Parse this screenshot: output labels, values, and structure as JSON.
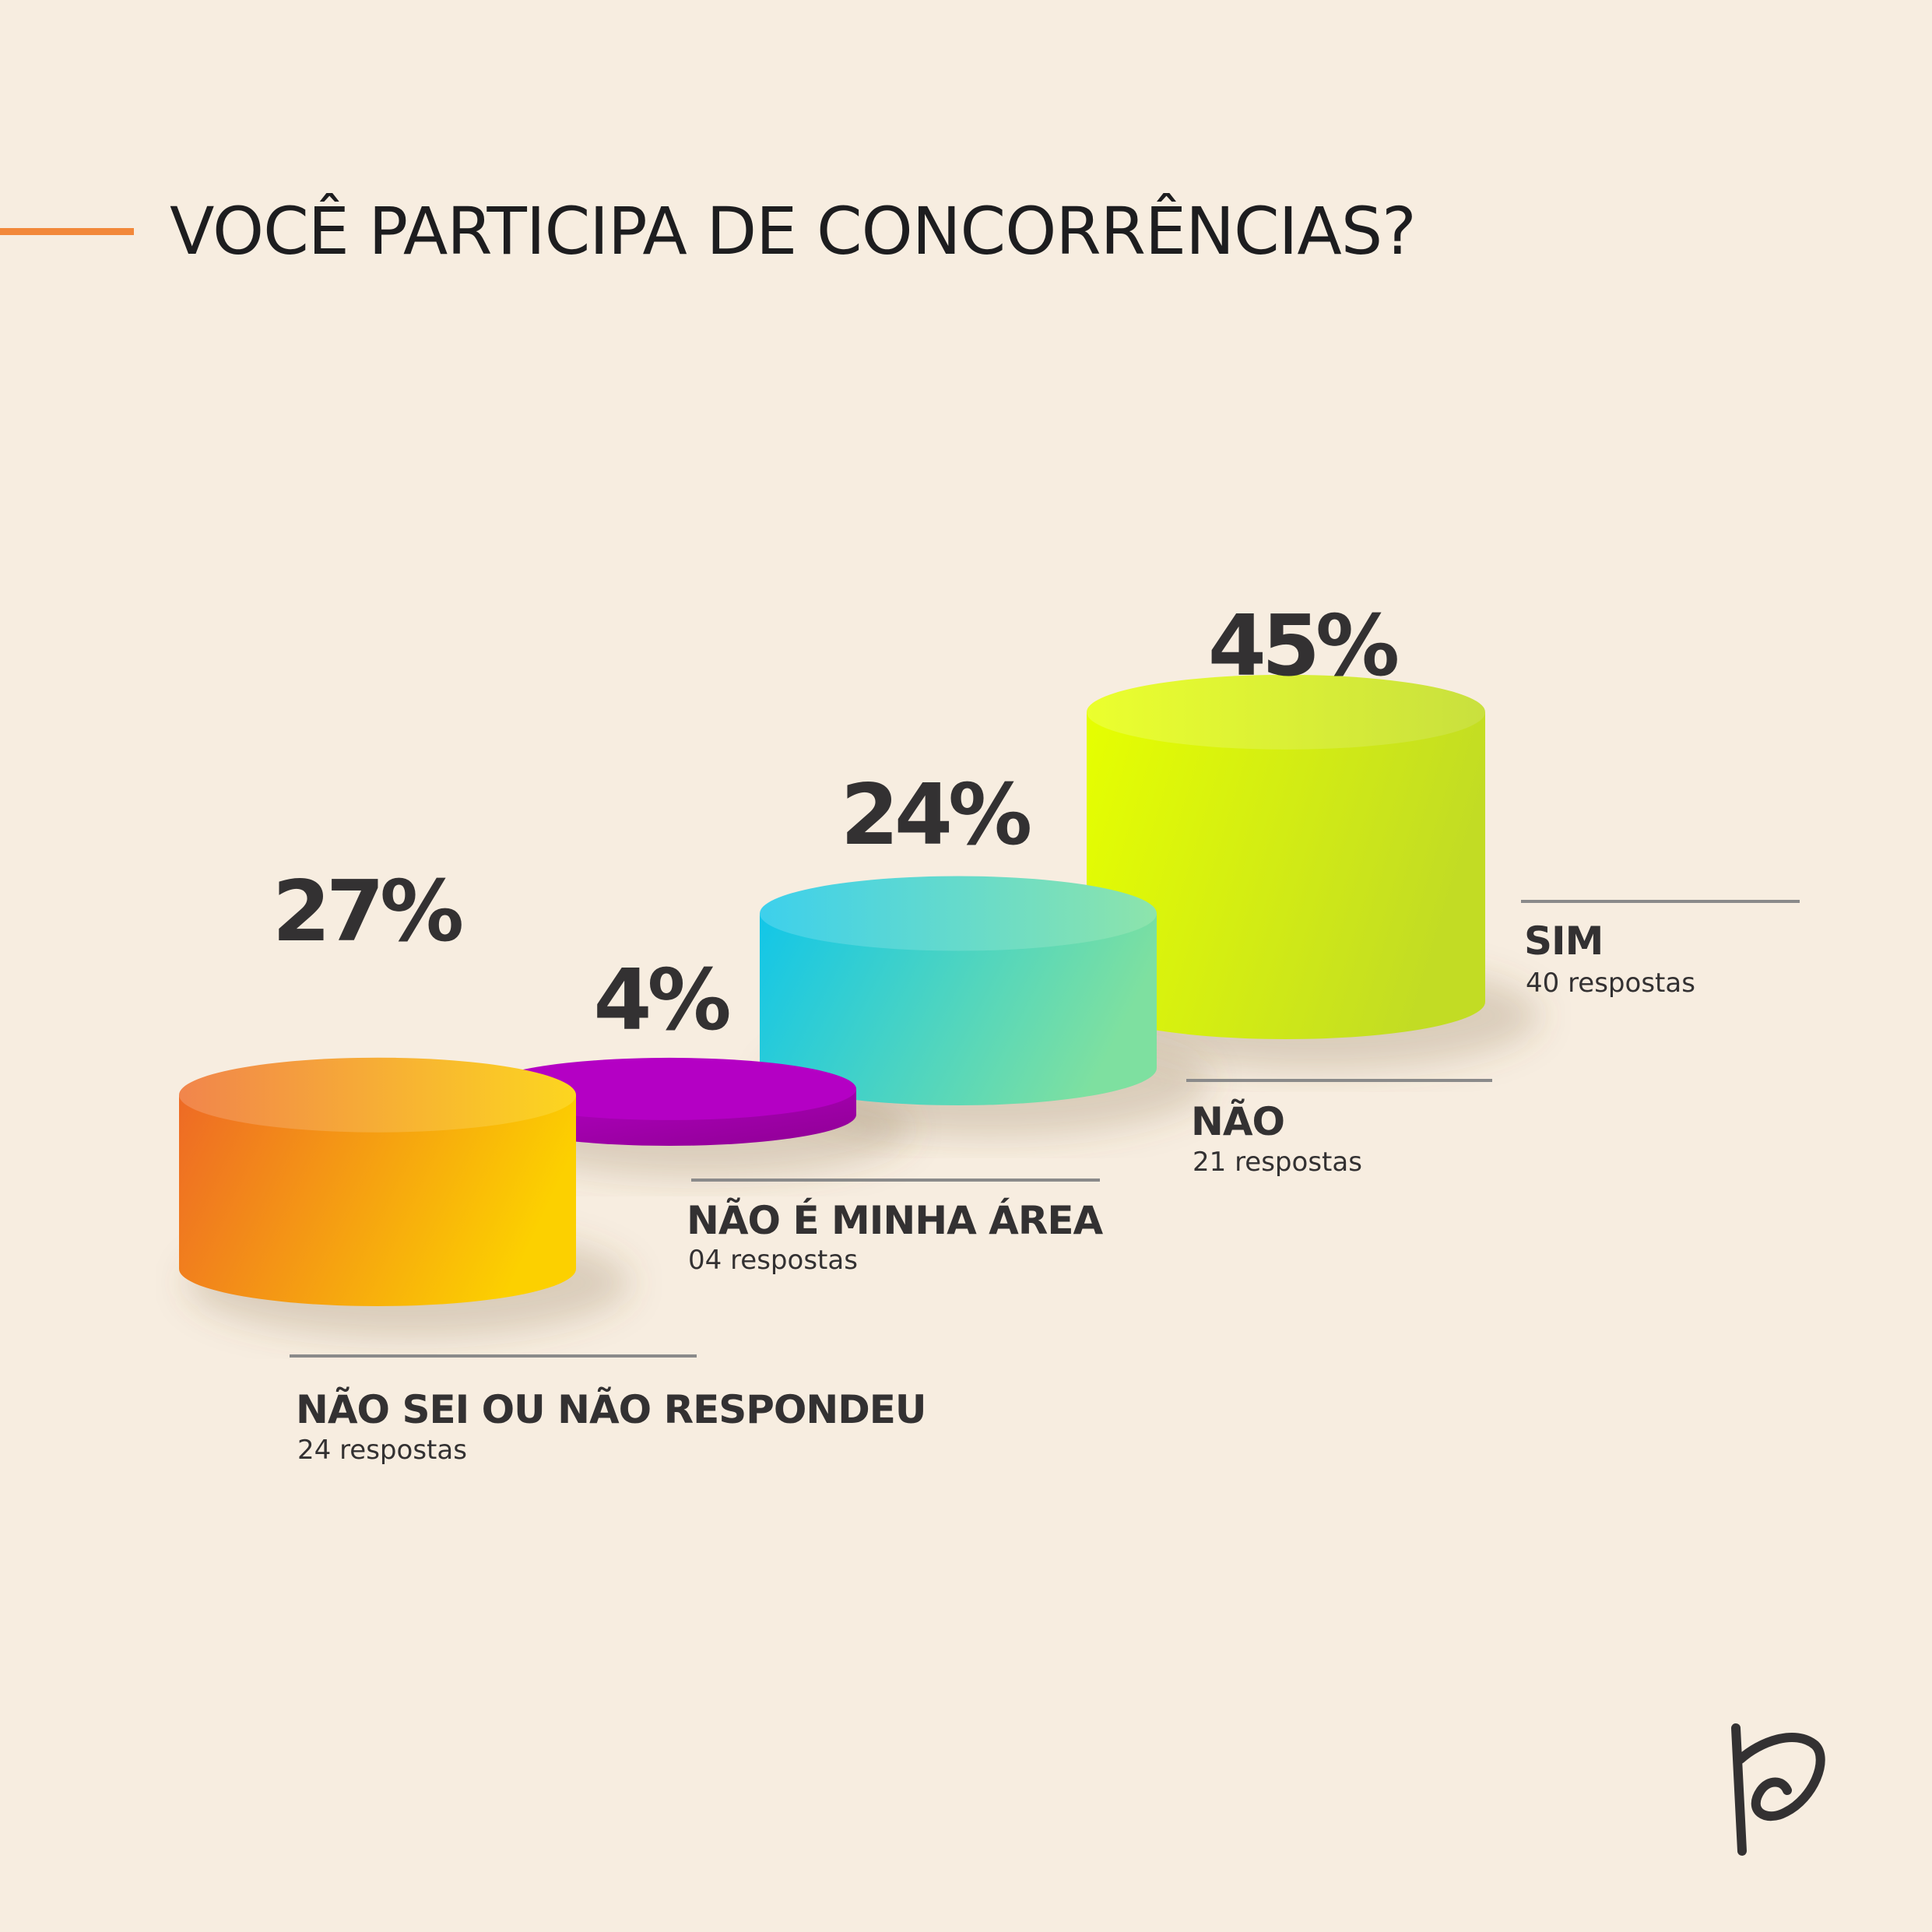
{
  "title": "VOCÊ PARTICIPA DE CONCORRÊNCIAS?",
  "colors": {
    "background": "#f7ede0",
    "title_rule": "#f2883a",
    "text": "#333132",
    "leader_line": "#8a8a8a"
  },
  "chart_data": {
    "type": "bar",
    "title": "VOCÊ PARTICIPA DE CONCORRÊNCIAS?",
    "xlabel": "",
    "ylabel": "",
    "unit": "%",
    "categories": [
      "NÃO SEI OU NÃO RESPONDEU",
      "NÃO É MINHA ÁREA",
      "NÃO",
      "SIM"
    ],
    "values": [
      27,
      4,
      24,
      45
    ],
    "value_labels": [
      "27%",
      "4%",
      "24%",
      "45%"
    ],
    "responses": [
      "24 respostas",
      "04 respostas",
      "21 respostas",
      "40 respostas"
    ],
    "bar_style": "3d-cylinder",
    "colors": [
      [
        "#ee6a25",
        "#fcd000"
      ],
      [
        "#b400c4",
        "#8f0094"
      ],
      [
        "#12c6e8",
        "#7ee0a0"
      ],
      [
        "#e6ff00",
        "#c2dc24"
      ]
    ],
    "grid": false,
    "legend": "none"
  },
  "logo": {
    "icon": "brand-p-logo-icon"
  }
}
